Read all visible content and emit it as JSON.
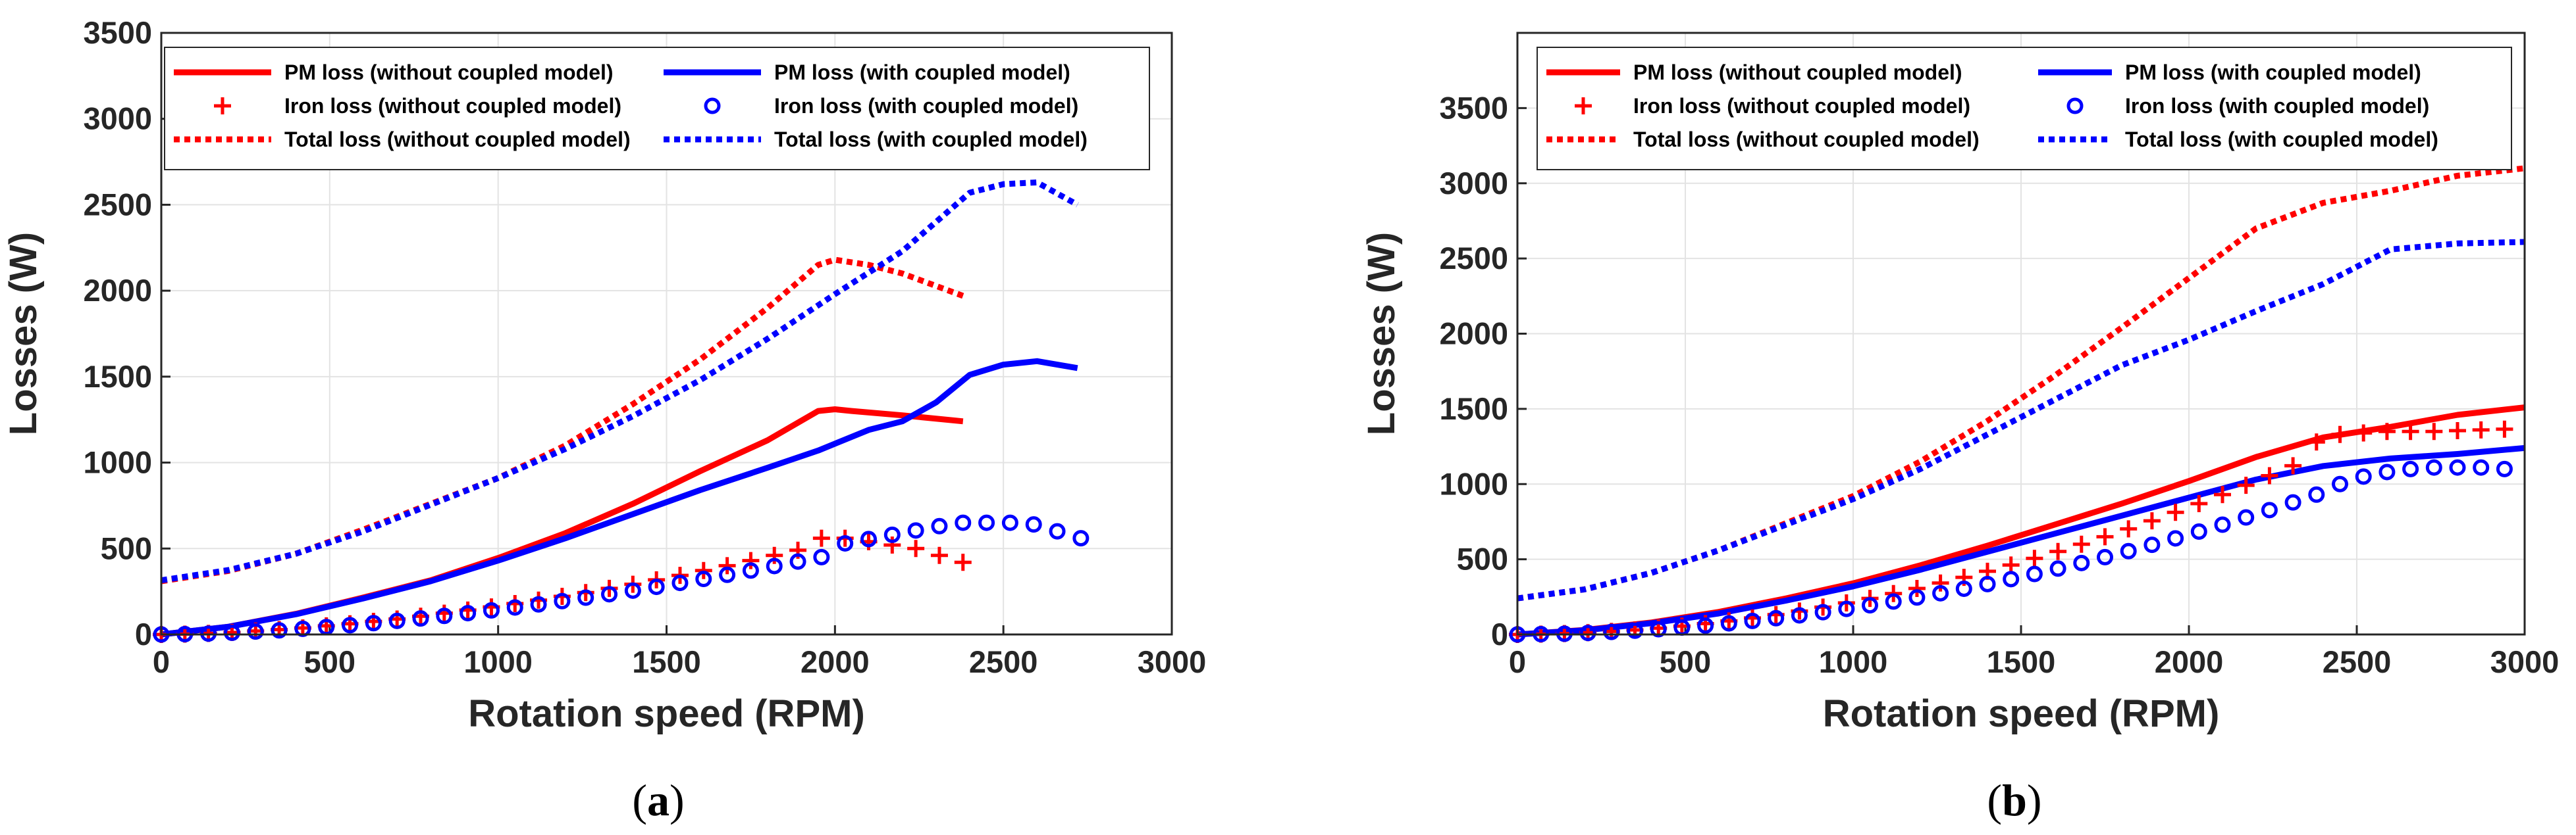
{
  "colors": {
    "red": "#ff0000",
    "blue": "#0000ff",
    "grid": "#e3e3e3",
    "axis": "#262626"
  },
  "legend_labels": [
    "PM loss (without coupled model)",
    "PM loss (with coupled model)",
    "Iron loss (without coupled model)",
    "Iron loss (with coupled model)",
    "Total loss (without coupled model)",
    "Total loss (with coupled model)"
  ],
  "chart_data": [
    {
      "type": "line",
      "panel": "a",
      "caption_letter": "a",
      "xlabel": "Rotation speed (RPM)",
      "ylabel": "Losses (W)",
      "xlim": [
        0,
        3000
      ],
      "ylim": [
        0,
        3500
      ],
      "xticks": [
        0,
        500,
        1000,
        1500,
        2000,
        2500,
        3000
      ],
      "yticks": [
        0,
        500,
        1000,
        1500,
        2000,
        2500,
        3000,
        3500
      ],
      "grid": true,
      "legend_position": "top",
      "series": [
        {
          "name": "PM loss (without coupled model)",
          "style": "solid",
          "color": "red",
          "x": [
            0,
            200,
            400,
            600,
            800,
            1000,
            1200,
            1400,
            1600,
            1800,
            1950,
            2000,
            2050,
            2200,
            2380
          ],
          "y": [
            0,
            45,
            120,
            215,
            315,
            445,
            590,
            760,
            950,
            1130,
            1300,
            1310,
            1300,
            1275,
            1240
          ]
        },
        {
          "name": "PM loss (with coupled model)",
          "style": "solid",
          "color": "blue",
          "x": [
            0,
            200,
            400,
            600,
            800,
            1000,
            1200,
            1400,
            1600,
            1800,
            1950,
            2100,
            2200,
            2300,
            2400,
            2500,
            2600,
            2720
          ],
          "y": [
            0,
            45,
            118,
            210,
            310,
            430,
            560,
            700,
            840,
            970,
            1070,
            1190,
            1240,
            1350,
            1510,
            1570,
            1590,
            1550
          ]
        },
        {
          "name": "Iron loss (without coupled model)",
          "style": "plus",
          "color": "red",
          "x": [
            0,
            70,
            140,
            210,
            280,
            350,
            420,
            490,
            560,
            630,
            700,
            770,
            840,
            910,
            980,
            1050,
            1120,
            1190,
            1260,
            1330,
            1400,
            1470,
            1540,
            1610,
            1680,
            1750,
            1820,
            1890,
            1960,
            2030,
            2100,
            2170,
            2240,
            2310,
            2380
          ],
          "y": [
            0,
            2,
            6,
            12,
            20,
            28,
            38,
            50,
            62,
            76,
            90,
            106,
            124,
            142,
            160,
            180,
            200,
            222,
            244,
            268,
            292,
            318,
            344,
            372,
            400,
            430,
            460,
            490,
            560,
            560,
            540,
            520,
            500,
            460,
            420
          ]
        },
        {
          "name": "Iron loss (with coupled model)",
          "style": "circle",
          "color": "blue",
          "x": [
            0,
            70,
            140,
            210,
            280,
            350,
            420,
            490,
            560,
            630,
            700,
            770,
            840,
            910,
            980,
            1050,
            1120,
            1190,
            1260,
            1330,
            1400,
            1470,
            1540,
            1610,
            1680,
            1750,
            1820,
            1890,
            1960,
            2030,
            2100,
            2170,
            2240,
            2310,
            2380,
            2450,
            2520,
            2590,
            2660,
            2730
          ],
          "y": [
            0,
            2,
            5,
            10,
            17,
            24,
            33,
            43,
            54,
            66,
            79,
            93,
            108,
            124,
            140,
            157,
            175,
            194,
            214,
            234,
            255,
            277,
            300,
            323,
            347,
            372,
            398,
            424,
            450,
            530,
            555,
            580,
            605,
            630,
            650,
            650,
            650,
            640,
            600,
            560
          ]
        },
        {
          "name": "Total loss (without coupled model)",
          "style": "dotted",
          "color": "red",
          "x": [
            0,
            200,
            400,
            600,
            800,
            1000,
            1200,
            1400,
            1600,
            1800,
            1950,
            2000,
            2100,
            2200,
            2380
          ],
          "y": [
            310,
            370,
            470,
            610,
            760,
            910,
            1100,
            1340,
            1600,
            1900,
            2150,
            2180,
            2150,
            2100,
            1970
          ]
        },
        {
          "name": "Total loss (with coupled model)",
          "style": "dotted",
          "color": "blue",
          "x": [
            0,
            200,
            400,
            600,
            800,
            1000,
            1200,
            1400,
            1600,
            1800,
            2000,
            2200,
            2300,
            2400,
            2500,
            2600,
            2720
          ],
          "y": [
            315,
            375,
            470,
            600,
            755,
            910,
            1080,
            1270,
            1480,
            1720,
            1980,
            2230,
            2400,
            2570,
            2620,
            2630,
            2500
          ]
        }
      ]
    },
    {
      "type": "line",
      "panel": "b",
      "caption_letter": "b",
      "xlabel": "Rotation speed (RPM)",
      "ylabel": "Losses (W)",
      "xlim": [
        0,
        3000
      ],
      "ylim": [
        0,
        4000
      ],
      "xticks": [
        0,
        500,
        1000,
        1500,
        2000,
        2500,
        3000
      ],
      "yticks": [
        0,
        500,
        1000,
        1500,
        2000,
        2500,
        3000,
        3500
      ],
      "grid": true,
      "legend_position": "top",
      "series": [
        {
          "name": "PM loss (without coupled model)",
          "style": "solid",
          "color": "red",
          "x": [
            0,
            200,
            400,
            600,
            800,
            1000,
            1200,
            1400,
            1600,
            1800,
            2000,
            2200,
            2400,
            2600,
            2800,
            3000
          ],
          "y": [
            0,
            30,
            80,
            150,
            240,
            340,
            460,
            590,
            730,
            870,
            1020,
            1180,
            1310,
            1380,
            1460,
            1510
          ]
        },
        {
          "name": "PM loss (with coupled model)",
          "style": "solid",
          "color": "blue",
          "x": [
            0,
            200,
            400,
            600,
            800,
            1000,
            1200,
            1400,
            1600,
            1800,
            2000,
            2200,
            2400,
            2600,
            2800,
            3000
          ],
          "y": [
            0,
            28,
            75,
            140,
            225,
            320,
            430,
            550,
            670,
            790,
            910,
            1030,
            1120,
            1170,
            1200,
            1240
          ]
        },
        {
          "name": "Iron loss (without coupled model)",
          "style": "plus",
          "color": "red",
          "x": [
            0,
            70,
            140,
            210,
            280,
            350,
            420,
            490,
            560,
            630,
            700,
            770,
            840,
            910,
            980,
            1050,
            1120,
            1190,
            1260,
            1330,
            1400,
            1470,
            1540,
            1610,
            1680,
            1750,
            1820,
            1890,
            1960,
            2030,
            2100,
            2170,
            2240,
            2310,
            2380,
            2450,
            2520,
            2590,
            2660,
            2730,
            2800,
            2870,
            2940
          ],
          "y": [
            0,
            2,
            6,
            12,
            20,
            30,
            42,
            56,
            72,
            90,
            110,
            132,
            156,
            182,
            210,
            240,
            272,
            306,
            342,
            380,
            420,
            462,
            506,
            552,
            600,
            650,
            702,
            756,
            812,
            870,
            930,
            992,
            1056,
            1122,
            1280,
            1330,
            1340,
            1350,
            1350,
            1350,
            1355,
            1360,
            1365
          ]
        },
        {
          "name": "Iron loss (with coupled model)",
          "style": "circle",
          "color": "blue",
          "x": [
            0,
            70,
            140,
            210,
            280,
            350,
            420,
            490,
            560,
            630,
            700,
            770,
            840,
            910,
            980,
            1050,
            1120,
            1190,
            1260,
            1330,
            1400,
            1470,
            1540,
            1610,
            1680,
            1750,
            1820,
            1890,
            1960,
            2030,
            2100,
            2170,
            2240,
            2310,
            2380,
            2450,
            2520,
            2590,
            2660,
            2730,
            2800,
            2870,
            2940
          ],
          "y": [
            0,
            2,
            5,
            10,
            17,
            25,
            35,
            46,
            59,
            74,
            90,
            108,
            127,
            148,
            170,
            194,
            219,
            246,
            274,
            304,
            335,
            368,
            402,
            438,
            475,
            514,
            554,
            596,
            639,
            684,
            730,
            778,
            827,
            878,
            930,
            1000,
            1050,
            1080,
            1100,
            1110,
            1110,
            1110,
            1100
          ]
        },
        {
          "name": "Total loss (without coupled model)",
          "style": "dotted",
          "color": "red",
          "x": [
            0,
            200,
            400,
            600,
            800,
            1000,
            1200,
            1400,
            1600,
            1800,
            2000,
            2200,
            2400,
            2600,
            2800,
            3000
          ],
          "y": [
            240,
            300,
            410,
            560,
            740,
            920,
            1150,
            1420,
            1720,
            2040,
            2370,
            2700,
            2870,
            2950,
            3050,
            3100
          ]
        },
        {
          "name": "Total loss (with coupled model)",
          "style": "dotted",
          "color": "blue",
          "x": [
            0,
            200,
            400,
            600,
            800,
            1000,
            1200,
            1400,
            1600,
            1800,
            2000,
            2200,
            2400,
            2600,
            2800,
            3000
          ],
          "y": [
            240,
            300,
            410,
            560,
            730,
            900,
            1100,
            1330,
            1560,
            1790,
            1960,
            2150,
            2330,
            2560,
            2600,
            2610
          ]
        }
      ]
    }
  ]
}
